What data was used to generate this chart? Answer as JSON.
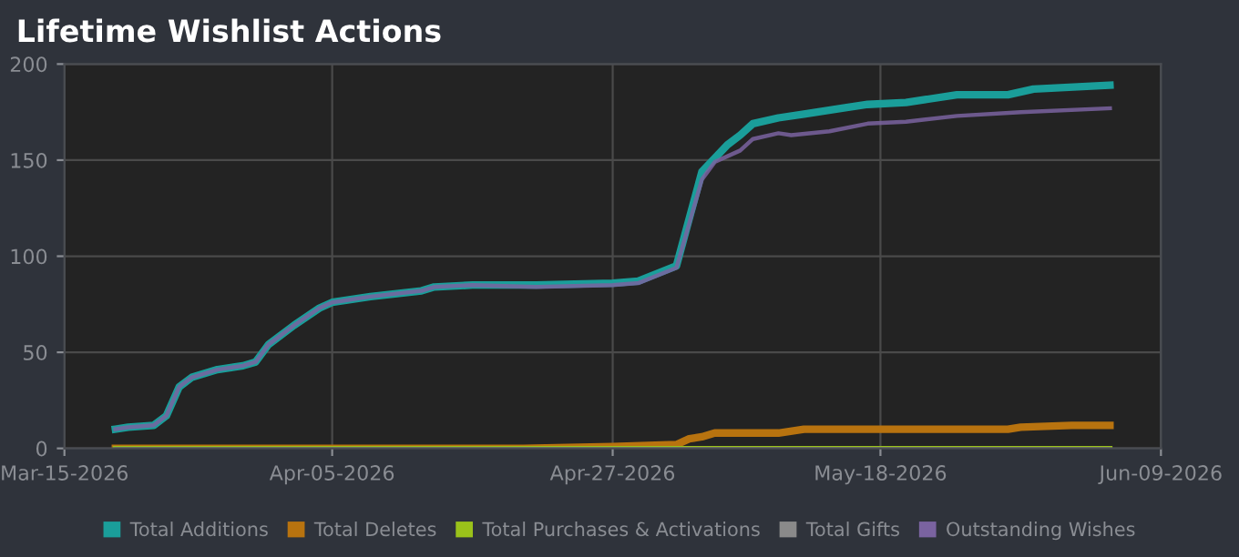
{
  "chart_data": {
    "type": "line",
    "title": "Lifetime Wishlist Actions",
    "xlim": [
      "2026-03-15",
      "2026-06-09"
    ],
    "xticks": [
      {
        "value": "2026-03-15",
        "label": "Mar-15-2026"
      },
      {
        "value": "2026-04-05",
        "label": "Apr-05-2026"
      },
      {
        "value": "2026-04-27",
        "label": "Apr-27-2026"
      },
      {
        "value": "2026-05-18",
        "label": "May-18-2026"
      },
      {
        "value": "2026-06-09",
        "label": "Jun-09-2026"
      }
    ],
    "ylim": [
      0,
      200
    ],
    "yticks": [
      0,
      50,
      100,
      150,
      200
    ],
    "grid": true,
    "legend": "bottom",
    "marker": "none",
    "line_style": "solid",
    "series": [
      {
        "name": "Total Additions",
        "color": "#1a9e9a",
        "x": [
          "2026-03-19",
          "2026-03-20",
          "2026-03-22",
          "2026-03-23",
          "2026-03-24",
          "2026-03-25",
          "2026-03-27",
          "2026-03-29",
          "2026-03-30",
          "2026-03-31",
          "2026-04-02",
          "2026-04-04",
          "2026-04-05",
          "2026-04-08",
          "2026-04-12",
          "2026-04-13",
          "2026-04-16",
          "2026-04-21",
          "2026-04-27",
          "2026-04-29",
          "2026-05-02",
          "2026-05-04",
          "2026-05-06",
          "2026-05-07",
          "2026-05-08",
          "2026-05-10",
          "2026-05-12",
          "2026-05-15",
          "2026-05-17",
          "2026-05-20",
          "2026-05-24",
          "2026-05-28",
          "2026-05-30",
          "2026-06-05"
        ],
        "values": [
          10,
          11,
          12,
          17,
          32,
          37,
          41,
          43,
          45,
          54,
          64,
          73,
          76,
          79,
          82,
          84,
          85,
          85,
          86,
          87,
          95,
          144,
          158,
          163,
          169,
          172,
          174,
          177,
          179,
          180,
          184,
          184,
          187,
          189
        ]
      },
      {
        "name": "Total Deletes",
        "color": "#b8730f",
        "x": [
          "2026-03-19",
          "2026-04-20",
          "2026-04-27",
          "2026-05-02",
          "2026-05-03",
          "2026-05-04",
          "2026-05-05",
          "2026-05-10",
          "2026-05-12",
          "2026-05-28",
          "2026-05-29",
          "2026-06-02",
          "2026-06-05"
        ],
        "values": [
          0,
          0,
          1,
          2,
          5,
          6,
          8,
          8,
          10,
          10,
          11,
          12,
          12
        ]
      },
      {
        "name": "Total Purchases & Activations",
        "color": "#9ac21a",
        "x": [
          "2026-03-19",
          "2026-06-05"
        ],
        "values": [
          0,
          0
        ]
      },
      {
        "name": "Total Gifts",
        "color": "#8a8a8a",
        "x": [
          "2026-03-19",
          "2026-06-05"
        ],
        "values": [
          0,
          0
        ]
      },
      {
        "name": "Outstanding Wishes",
        "color": "#7a63a0",
        "x": [
          "2026-03-19",
          "2026-03-20",
          "2026-03-22",
          "2026-03-23",
          "2026-03-24",
          "2026-03-25",
          "2026-03-27",
          "2026-03-29",
          "2026-03-30",
          "2026-03-31",
          "2026-04-02",
          "2026-04-04",
          "2026-04-05",
          "2026-04-08",
          "2026-04-12",
          "2026-04-13",
          "2026-04-16",
          "2026-04-21",
          "2026-04-27",
          "2026-04-29",
          "2026-05-02",
          "2026-05-04",
          "2026-05-05",
          "2026-05-07",
          "2026-05-08",
          "2026-05-10",
          "2026-05-11",
          "2026-05-14",
          "2026-05-17",
          "2026-05-20",
          "2026-05-24",
          "2026-05-29",
          "2026-06-05"
        ],
        "values": [
          10,
          11,
          12,
          17,
          32,
          37,
          41,
          43,
          45,
          54,
          64,
          73,
          76,
          79,
          82,
          84,
          85,
          84,
          85,
          86,
          94,
          140,
          149,
          155,
          161,
          164,
          163,
          165,
          169,
          170,
          173,
          175,
          177
        ]
      }
    ]
  }
}
